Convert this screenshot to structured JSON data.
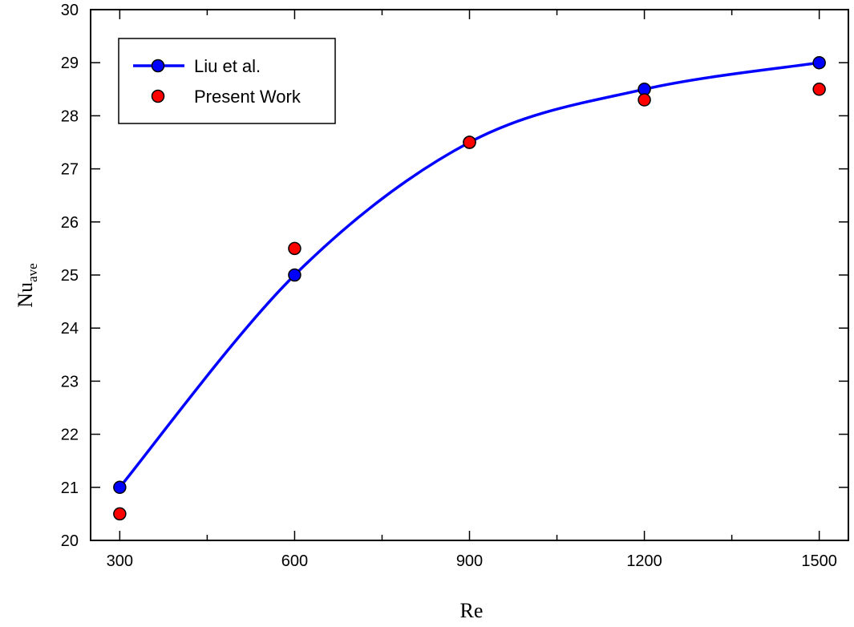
{
  "chart_data": {
    "type": "line",
    "title": "",
    "xlabel": "Re",
    "ylabel_main": "Nu",
    "ylabel_sub": "ave",
    "xlim": [
      250,
      1550
    ],
    "ylim": [
      20,
      30
    ],
    "x_ticks": [
      300,
      600,
      900,
      1200,
      1500
    ],
    "y_ticks": [
      20,
      21,
      22,
      23,
      24,
      25,
      26,
      27,
      28,
      29,
      30
    ],
    "grid": false,
    "legend_position": "top-left",
    "series": [
      {
        "name": "Liu et al.",
        "style": "line+markers",
        "line_color": "#0000ff",
        "marker_color": "#0000ff",
        "x": [
          300,
          600,
          900,
          1200,
          1500
        ],
        "y": [
          21.0,
          25.0,
          27.5,
          28.5,
          29.0
        ]
      },
      {
        "name": "Present Work",
        "style": "markers",
        "marker_color": "#ff0000",
        "x": [
          300,
          600,
          900,
          1200,
          1500
        ],
        "y": [
          20.5,
          25.5,
          27.5,
          28.3,
          28.5
        ]
      }
    ]
  }
}
